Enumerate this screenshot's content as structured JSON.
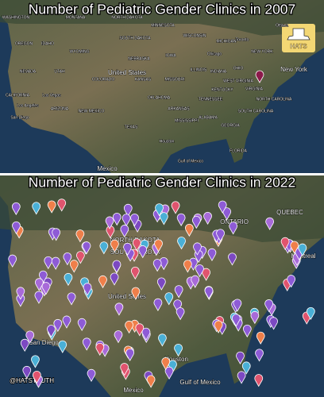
{
  "top_panel": {
    "title": "Number of Pediatric Gender Clinics in 2007",
    "labels": [
      "WASHINGTON",
      "MONTANA",
      "NORTH DAKOTA",
      "MINNESOTA",
      "Ottawa",
      "Toronto",
      "WISCONSIN",
      "MICHIGAN",
      "OREGON",
      "IDAHO",
      "WYOMING",
      "SOUTH DAKOTA",
      "IOWA",
      "Chicago",
      "NEBRASKA",
      "NEW YORK",
      "NEVADA",
      "UTAH",
      "United States",
      "COLORADO",
      "KANSAS",
      "MISSOURI",
      "ILLINOIS",
      "INDIANA",
      "OHIO",
      "New York",
      "WEST VIRGINIA",
      "VIRGINIA",
      "CALIFORNIA",
      "Las Vegas",
      "ARIZONA",
      "NEW MEXICO",
      "OKLAHOMA",
      "KENTUCKY",
      "TENNESSEE",
      "NORTH CAROLINA",
      "Los Angeles",
      "San Diego",
      "ARKANSAS",
      "MISSISSIPPI",
      "ALABAMA",
      "GEORGIA",
      "SOUTH CAROLINA",
      "TEXAS",
      "Houston",
      "FLORIDA",
      "Gulf of Mexico",
      "Mexico"
    ]
  },
  "bottom_panel": {
    "title": "Number of Pediatric Gender Clinics in 2022",
    "labels": [
      "ONTARIO",
      "QUEBEC",
      "NORTH DAKOTA",
      "SOUTH DAKOTA",
      "Montreal",
      "United States",
      "San Diego",
      "Houston",
      "Gulf of Mexico",
      "Mexico"
    ]
  },
  "logo": "HATS",
  "watermark": "@HATSTRUTH"
}
